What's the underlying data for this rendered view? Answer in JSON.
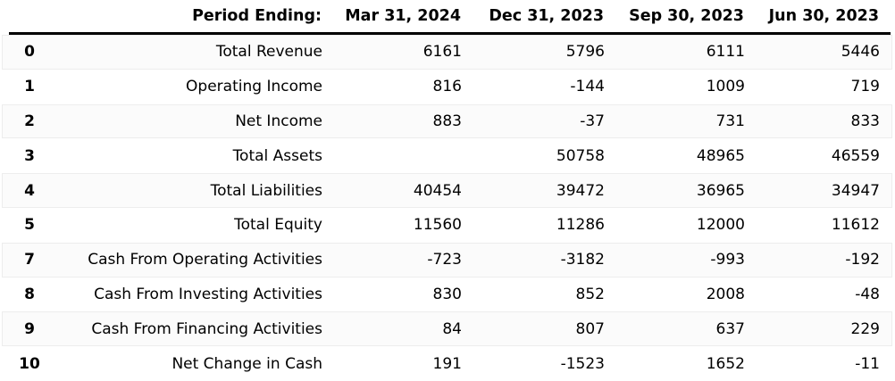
{
  "chart_data": {
    "type": "table",
    "title": "",
    "index_header": "",
    "row_label_header": "Period Ending:",
    "columns": [
      "Mar 31, 2024",
      "Dec 31, 2023",
      "Sep 30, 2023",
      "Jun 30, 2023"
    ],
    "rows": [
      {
        "index": "0",
        "label": "Total Revenue",
        "values": [
          "6161",
          "5796",
          "6111",
          "5446"
        ]
      },
      {
        "index": "1",
        "label": "Operating Income",
        "values": [
          "816",
          "-144",
          "1009",
          "719"
        ]
      },
      {
        "index": "2",
        "label": "Net Income",
        "values": [
          "883",
          "-37",
          "731",
          "833"
        ]
      },
      {
        "index": "3",
        "label": "Total Assets",
        "values": [
          "",
          "50758",
          "48965",
          "46559"
        ]
      },
      {
        "index": "4",
        "label": "Total Liabilities",
        "values": [
          "40454",
          "39472",
          "36965",
          "34947"
        ]
      },
      {
        "index": "5",
        "label": "Total Equity",
        "values": [
          "11560",
          "11286",
          "12000",
          "11612"
        ]
      },
      {
        "index": "7",
        "label": "Cash From Operating Activities",
        "values": [
          "-723",
          "-3182",
          "-993",
          "-192"
        ]
      },
      {
        "index": "8",
        "label": "Cash From Investing Activities",
        "values": [
          "830",
          "852",
          "2008",
          "-48"
        ]
      },
      {
        "index": "9",
        "label": "Cash From Financing Activities",
        "values": [
          "84",
          "807",
          "637",
          "229"
        ]
      },
      {
        "index": "10",
        "label": "Net Change in Cash",
        "values": [
          "191",
          "-1523",
          "1652",
          "-11"
        ]
      }
    ],
    "layout": {
      "header_bold": true,
      "values_align": "right",
      "index_align": "center",
      "stripe_even_rows": true
    }
  },
  "colors": {
    "text": "#000000",
    "header_rule": "#000000",
    "row_stripe": "#fbfbfb",
    "row_stripe_border": "#ededed",
    "background": "#ffffff"
  }
}
